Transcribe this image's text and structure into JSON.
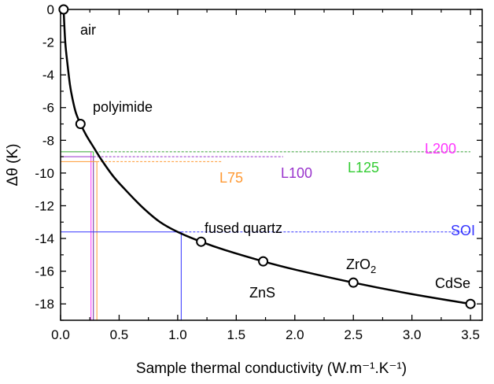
{
  "chart_data": {
    "type": "line",
    "xlabel": "Sample thermal conductivity (W.m⁻¹.K⁻¹)",
    "ylabel": "Δθ (K)",
    "xlim": [
      0.0,
      3.6
    ],
    "ylim": [
      -19,
      0
    ],
    "xticks": [
      0.0,
      0.5,
      1.0,
      1.5,
      2.0,
      2.5,
      3.0,
      3.5
    ],
    "xtick_labels": [
      "0.0",
      "0.5",
      "1.0",
      "1.5",
      "2.0",
      "2.5",
      "3.0",
      "3.5"
    ],
    "yticks": [
      0,
      -2,
      -4,
      -6,
      -8,
      -10,
      -12,
      -14,
      -16,
      -18
    ],
    "ytick_labels": [
      "0",
      "-2",
      "-4",
      "-6",
      "-8",
      "-10",
      "-12",
      "-14",
      "-16",
      "-18"
    ],
    "grid": false,
    "curve": {
      "x": [
        0.026,
        0.04,
        0.06,
        0.08,
        0.1,
        0.13,
        0.17,
        0.22,
        0.28,
        0.35,
        0.45,
        0.55,
        0.7,
        0.85,
        1.0,
        1.2,
        1.4,
        1.73,
        2.0,
        2.5,
        3.0,
        3.5
      ],
      "y": [
        0.0,
        -2.0,
        -3.4,
        -4.6,
        -5.4,
        -6.3,
        -7.0,
        -7.7,
        -8.4,
        -9.2,
        -10.2,
        -11.0,
        -12.1,
        -13.0,
        -13.6,
        -14.2,
        -14.7,
        -15.4,
        -15.9,
        -16.7,
        -17.4,
        -18.0
      ]
    },
    "points": [
      {
        "label": "air",
        "x": 0.026,
        "y": 0.0
      },
      {
        "label": "polyimide",
        "x": 0.17,
        "y": -7.0
      },
      {
        "label": "fused quartz",
        "x": 1.2,
        "y": -14.2
      },
      {
        "label": "ZnS",
        "x": 1.73,
        "y": -15.4
      },
      {
        "label": "ZrO",
        "label_sub": "2",
        "x": 2.5,
        "y": -16.7
      },
      {
        "label": "CdSe",
        "x": 3.5,
        "y": -18.0
      }
    ],
    "reference_lines": [
      {
        "label": "L200",
        "y": -8.7,
        "color": "#ff33ff",
        "x_intersect": 0.26
      },
      {
        "label": "L125",
        "y": -8.7,
        "color": "#33cc33",
        "x_intersect": 0.26
      },
      {
        "label": "L100",
        "y": -9.0,
        "color": "#9933cc",
        "x_intersect": 0.28
      },
      {
        "label": "L75",
        "y": -9.3,
        "color": "#ff9933",
        "x_intersect": 0.31
      },
      {
        "label": "SOI",
        "y": -13.6,
        "color": "#3333ff",
        "x_intersect": 1.03
      }
    ]
  }
}
